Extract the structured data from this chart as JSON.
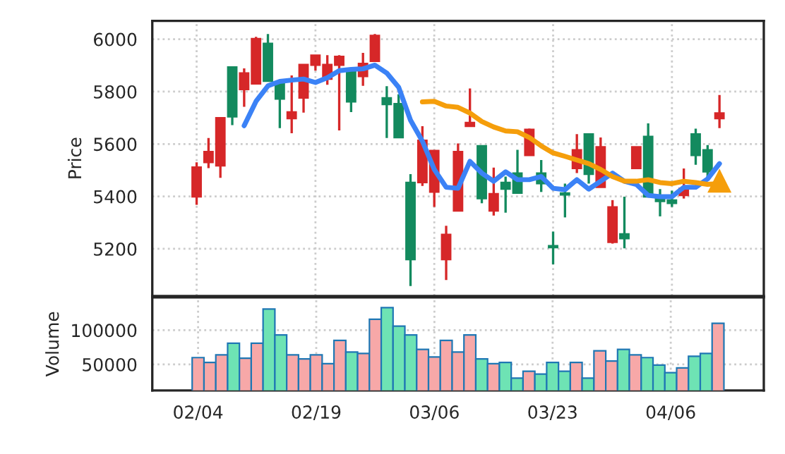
{
  "chart_data": [
    {
      "type": "candlestick",
      "ylabel": "Price",
      "tick_labels": "y",
      "grid": true,
      "categories": [
        null,
        null,
        null,
        null,
        null,
        null,
        null,
        null,
        null,
        null,
        null,
        null,
        null,
        null,
        null,
        null,
        null,
        null,
        null,
        null,
        null,
        null,
        null,
        null,
        null,
        null,
        null,
        null,
        null,
        null,
        null,
        null,
        null,
        null,
        null,
        null,
        null,
        null,
        null,
        null,
        null,
        null,
        null,
        null,
        null
      ],
      "ohlc": [
        [
          5399,
          5530,
          5368,
          5512
        ],
        [
          5530,
          5623,
          5508,
          5571
        ],
        [
          5517,
          5700,
          5471,
          5700
        ],
        [
          5894,
          5894,
          5672,
          5704
        ],
        [
          5808,
          5889,
          5742,
          5871
        ],
        [
          5830,
          6009,
          5830,
          6002
        ],
        [
          5984,
          6020,
          5840,
          5840
        ],
        [
          5835,
          5835,
          5661,
          5772
        ],
        [
          5697,
          5862,
          5641,
          5722
        ],
        [
          5776,
          5903,
          5720,
          5903
        ],
        [
          5901,
          5939,
          5880,
          5939
        ],
        [
          5848,
          5939,
          5826,
          5903
        ],
        [
          5901,
          5939,
          5652,
          5934
        ],
        [
          5880,
          5880,
          5722,
          5761
        ],
        [
          5858,
          5948,
          5822,
          5907
        ],
        [
          5916,
          6020,
          5916,
          6014
        ],
        [
          5776,
          5821,
          5623,
          5751
        ],
        [
          5754,
          5790,
          5625,
          5625
        ],
        [
          5453,
          5485,
          5058,
          5159
        ],
        [
          5453,
          5668,
          5440,
          5614
        ],
        [
          5417,
          5575,
          5360,
          5575
        ],
        [
          5159,
          5288,
          5081,
          5255
        ],
        [
          5345,
          5602,
          5345,
          5571
        ],
        [
          5668,
          5812,
          5668,
          5682
        ],
        [
          5593,
          5593,
          5374,
          5392
        ],
        [
          5345,
          5510,
          5327,
          5410
        ],
        [
          5453,
          5476,
          5338,
          5428
        ],
        [
          5489,
          5578,
          5413,
          5413
        ],
        [
          5557,
          5659,
          5557,
          5656
        ],
        [
          5489,
          5539,
          5417,
          5449
        ],
        [
          5212,
          5266,
          5141,
          5205
        ],
        [
          5413,
          5449,
          5320,
          5406
        ],
        [
          5507,
          5638,
          5489,
          5578
        ],
        [
          5638,
          5638,
          5449,
          5485
        ],
        [
          5435,
          5625,
          5435,
          5589
        ],
        [
          5225,
          5386,
          5220,
          5360
        ],
        [
          5257,
          5399,
          5202,
          5239
        ],
        [
          5507,
          5589,
          5507,
          5589
        ],
        [
          5629,
          5679,
          5399,
          5399
        ],
        [
          5395,
          5428,
          5324,
          5381
        ],
        [
          5386,
          5422,
          5360,
          5374
        ],
        [
          5404,
          5507,
          5392,
          5431
        ],
        [
          5638,
          5659,
          5521,
          5557
        ],
        [
          5578,
          5596,
          5464,
          5494
        ],
        [
          5697,
          5787,
          5661,
          5718
        ]
      ],
      "colors": [
        "#d62728",
        "#d62728",
        "#d62728",
        "#138a5e",
        "#d62728",
        "#d62728",
        "#138a5e",
        "#138a5e",
        "#d62728",
        "#d62728",
        "#d62728",
        "#d62728",
        "#d62728",
        "#138a5e",
        "#d62728",
        "#d62728",
        "#138a5e",
        "#138a5e",
        "#138a5e",
        "#d62728",
        "#d62728",
        "#d62728",
        "#d62728",
        "#d62728",
        "#138a5e",
        "#d62728",
        "#138a5e",
        "#138a5e",
        "#d62728",
        "#138a5e",
        "#138a5e",
        "#138a5e",
        "#d62728",
        "#138a5e",
        "#d62728",
        "#d62728",
        "#138a5e",
        "#d62728",
        "#138a5e",
        "#138a5e",
        "#138a5e",
        "#d62728",
        "#138a5e",
        "#138a5e",
        "#d62728"
      ],
      "ylim": [
        5020,
        6070
      ],
      "yticks": [
        5200,
        5400,
        5600,
        5800,
        6000
      ],
      "series": [
        {
          "type": "line",
          "color": "#3b82f6",
          "line_style": "solid",
          "values": [
            null,
            null,
            null,
            null,
            5670,
            5763,
            5822,
            5839,
            5844,
            5848,
            5835,
            5853,
            5880,
            5885,
            5887,
            5901,
            5871,
            5817,
            5691,
            5611,
            5503,
            5435,
            5431,
            5534,
            5489,
            5458,
            5494,
            5464,
            5464,
            5476,
            5431,
            5426,
            5464,
            5428,
            5458,
            5489,
            5458,
            5446,
            5404,
            5399,
            5399,
            5435,
            5435,
            5467,
            5525
          ]
        },
        {
          "type": "line",
          "color": "#f59e0b",
          "line_style": "solid",
          "values": [
            null,
            null,
            null,
            null,
            null,
            null,
            null,
            null,
            null,
            null,
            null,
            null,
            null,
            null,
            null,
            null,
            null,
            null,
            null,
            5761,
            5763,
            5745,
            5740,
            5718,
            5686,
            5665,
            5650,
            5647,
            5625,
            5593,
            5566,
            5553,
            5539,
            5525,
            5503,
            5476,
            5458,
            5458,
            5464,
            5453,
            5449,
            5458,
            5453,
            5446,
            5449
          ]
        },
        {
          "type": "scatter",
          "color": "#f59e0b",
          "marker": "triangle",
          "values": [
            null,
            null,
            null,
            null,
            null,
            null,
            null,
            null,
            null,
            null,
            null,
            null,
            null,
            null,
            null,
            null,
            null,
            null,
            null,
            null,
            null,
            null,
            null,
            null,
            null,
            null,
            null,
            null,
            null,
            null,
            null,
            null,
            null,
            null,
            null,
            null,
            null,
            null,
            null,
            null,
            null,
            null,
            null,
            null,
            5460
          ]
        }
      ]
    },
    {
      "type": "bar",
      "ylabel": "Volume",
      "grid": true,
      "categories": [
        "02/04",
        null,
        null,
        null,
        null,
        null,
        null,
        null,
        null,
        null,
        "02/19",
        null,
        null,
        null,
        null,
        null,
        null,
        null,
        null,
        null,
        "03/06",
        null,
        null,
        null,
        null,
        null,
        null,
        null,
        null,
        null,
        "03/23",
        null,
        null,
        null,
        null,
        null,
        null,
        null,
        null,
        null,
        "04/06",
        null,
        null,
        null,
        null
      ],
      "values": [
        60000,
        53000,
        64000,
        81000,
        59000,
        81000,
        131000,
        93000,
        64000,
        58000,
        64000,
        51000,
        85000,
        68000,
        66000,
        116000,
        133000,
        106000,
        93000,
        72000,
        61000,
        85000,
        68000,
        93000,
        58000,
        51000,
        53000,
        30000,
        40000,
        36000,
        53000,
        40000,
        53000,
        30000,
        70000,
        55000,
        72000,
        64000,
        60000,
        49000,
        38000,
        45000,
        62000,
        66000,
        110000
      ],
      "colors": [
        "#f7a8a8",
        "#f7a8a8",
        "#f7a8a8",
        "#6ee3b4",
        "#f7a8a8",
        "#f7a8a8",
        "#6ee3b4",
        "#6ee3b4",
        "#f7a8a8",
        "#f7a8a8",
        "#f7a8a8",
        "#f7a8a8",
        "#f7a8a8",
        "#6ee3b4",
        "#f7a8a8",
        "#f7a8a8",
        "#6ee3b4",
        "#6ee3b4",
        "#6ee3b4",
        "#f7a8a8",
        "#f7a8a8",
        "#f7a8a8",
        "#f7a8a8",
        "#f7a8a8",
        "#6ee3b4",
        "#f7a8a8",
        "#6ee3b4",
        "#6ee3b4",
        "#f7a8a8",
        "#6ee3b4",
        "#6ee3b4",
        "#6ee3b4",
        "#f7a8a8",
        "#6ee3b4",
        "#f7a8a8",
        "#f7a8a8",
        "#6ee3b4",
        "#f7a8a8",
        "#6ee3b4",
        "#6ee3b4",
        "#6ee3b4",
        "#f7a8a8",
        "#6ee3b4",
        "#6ee3b4",
        "#f7a8a8"
      ],
      "ylim": [
        12000,
        148000
      ],
      "yticks": [
        50000,
        100000
      ]
    }
  ]
}
